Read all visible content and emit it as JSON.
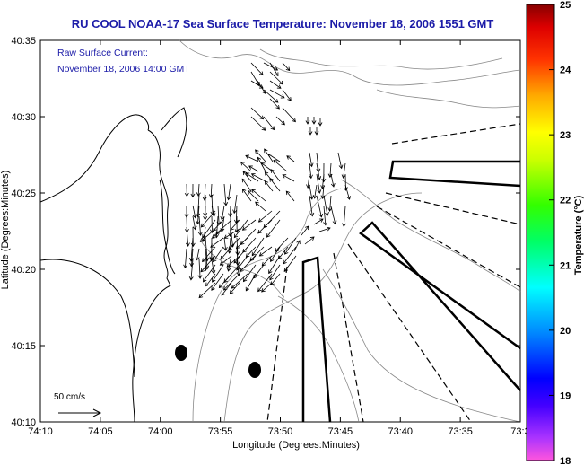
{
  "title": "RU COOL  NOAA-17  Sea Surface Temperature:  November 18, 2006 1551 GMT",
  "current_note": {
    "line1": "Raw Surface Current:",
    "line2": "November 18, 2006 14:00 GMT"
  },
  "axes": {
    "xlabel": "Longitude (Degrees:Minutes)",
    "ylabel": "Latitude (Degrees:Minutes)",
    "x_ticks": [
      "74:10",
      "74:05",
      "74:00",
      "73:55",
      "73:50",
      "73:45",
      "73:40",
      "73:35",
      "73:3"
    ],
    "y_ticks": [
      "40:35",
      "40:30",
      "40:25",
      "40:20",
      "40:15",
      "40:10"
    ]
  },
  "scale_label": "50 cm/s",
  "colorbar": {
    "label": "Temperature (°C)",
    "ticks": [
      "25",
      "24",
      "23",
      "22",
      "21",
      "20",
      "19",
      "18"
    ],
    "min": 18,
    "max": 25,
    "colors": [
      "#ff44dd",
      "#7700ff",
      "#0000ff",
      "#0099ff",
      "#00ffff",
      "#00ff66",
      "#33ff00",
      "#ccff00",
      "#ffff00",
      "#ffaa00",
      "#ff3300",
      "#dd0000",
      "#990000"
    ]
  },
  "features": {
    "dots": 2,
    "transects_solid": 4,
    "transects_dashed": 6
  }
}
